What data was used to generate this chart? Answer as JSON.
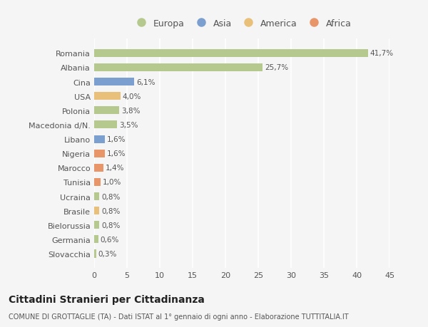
{
  "categories": [
    "Slovacchia",
    "Germania",
    "Bielorussia",
    "Brasile",
    "Ucraina",
    "Tunisia",
    "Marocco",
    "Nigeria",
    "Libano",
    "Macedonia d/N.",
    "Polonia",
    "USA",
    "Cina",
    "Albania",
    "Romania"
  ],
  "values": [
    0.3,
    0.6,
    0.8,
    0.8,
    0.8,
    1.0,
    1.4,
    1.6,
    1.6,
    3.5,
    3.8,
    4.0,
    6.1,
    25.7,
    41.7
  ],
  "labels": [
    "0,3%",
    "0,6%",
    "0,8%",
    "0,8%",
    "0,8%",
    "1,0%",
    "1,4%",
    "1,6%",
    "1,6%",
    "3,5%",
    "3,8%",
    "4,0%",
    "6,1%",
    "25,7%",
    "41,7%"
  ],
  "colors": [
    "#b5c98e",
    "#b5c98e",
    "#b5c98e",
    "#e8c07a",
    "#b5c98e",
    "#e8956a",
    "#e8956a",
    "#e8956a",
    "#7b9fcf",
    "#b5c98e",
    "#b5c98e",
    "#e8c07a",
    "#7b9fcf",
    "#b5c98e",
    "#b5c98e"
  ],
  "legend_labels": [
    "Europa",
    "Asia",
    "America",
    "Africa"
  ],
  "legend_colors": [
    "#b5c98e",
    "#7b9fcf",
    "#e8c07a",
    "#e8956a"
  ],
  "title": "Cittadini Stranieri per Cittadinanza",
  "subtitle": "COMUNE DI GROTTAGLIE (TA) - Dati ISTAT al 1° gennaio di ogni anno - Elaborazione TUTTITALIA.IT",
  "xlim": [
    0,
    45
  ],
  "xticks": [
    0,
    5,
    10,
    15,
    20,
    25,
    30,
    35,
    40,
    45
  ],
  "background_color": "#f5f5f5",
  "bar_height": 0.55,
  "grid_color": "#ffffff",
  "text_color": "#555555"
}
